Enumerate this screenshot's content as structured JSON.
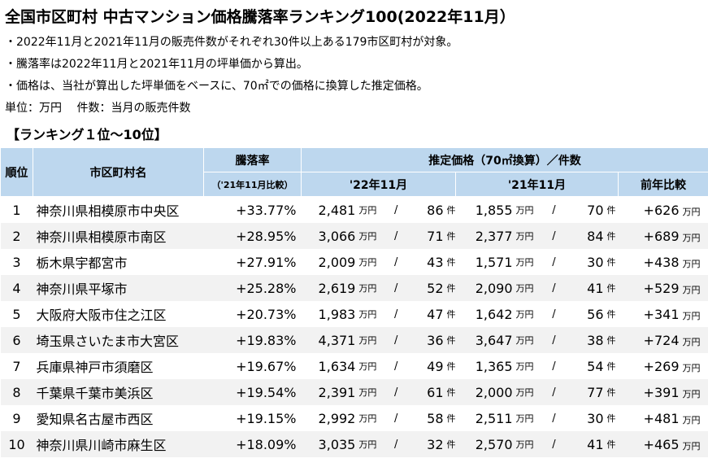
{
  "header": {
    "title": "全国市区町村 中古マンション価格騰落率ランキング100(2022年11月）",
    "notes": [
      "・2022年11月と2021年11月の販売件数がそれぞれ30件以上ある179市区町村が対象。",
      "・騰落率は2022年11月と2021年11月の坪単価から算出。",
      "・価格は、当社が算出した坪単価をベースに、70㎡での価格に換算した推定価格。"
    ],
    "units": "単位：万円　 件数：当月の販売件数"
  },
  "section": "【ランキング１位～10位】",
  "table": {
    "headers": {
      "rank": "順位",
      "city": "市区町村名",
      "rate": "騰落率",
      "rate_sub": "（'21年11月比較）",
      "price": "推定価格（70㎡換算）／件数",
      "col1": "'22年11月",
      "col2": "'21年11月",
      "col3": "前年比較"
    },
    "unit_price": "万円",
    "unit_count": "件",
    "separator": "/",
    "rows": [
      [
        1,
        "神奈川県相模原市中央区",
        "+33.77%",
        "2,481",
        86,
        "1,855",
        70,
        "+626"
      ],
      [
        2,
        "神奈川県相模原市南区",
        "+28.95%",
        "3,066",
        71,
        "2,377",
        84,
        "+689"
      ],
      [
        3,
        "栃木県宇都宮市",
        "+27.91%",
        "2,009",
        43,
        "1,571",
        30,
        "+438"
      ],
      [
        4,
        "神奈川県平塚市",
        "+25.28%",
        "2,619",
        52,
        "2,090",
        41,
        "+529"
      ],
      [
        5,
        "大阪府大阪市住之江区",
        "+20.73%",
        "1,983",
        47,
        "1,642",
        56,
        "+341"
      ],
      [
        6,
        "埼玉県さいたま市大宮区",
        "+19.83%",
        "4,371",
        36,
        "3,647",
        38,
        "+724"
      ],
      [
        7,
        "兵庫県神戸市須磨区",
        "+19.67%",
        "1,634",
        49,
        "1,365",
        54,
        "+269"
      ],
      [
        8,
        "千葉県千葉市美浜区",
        "+19.54%",
        "2,391",
        61,
        "2,000",
        77,
        "+391"
      ],
      [
        9,
        "愛知県名古屋市西区",
        "+19.15%",
        "2,992",
        58,
        "2,511",
        30,
        "+481"
      ],
      [
        10,
        "神奈川県川崎市麻生区",
        "+18.09%",
        "3,035",
        32,
        "2,570",
        41,
        "+465"
      ]
    ]
  }
}
